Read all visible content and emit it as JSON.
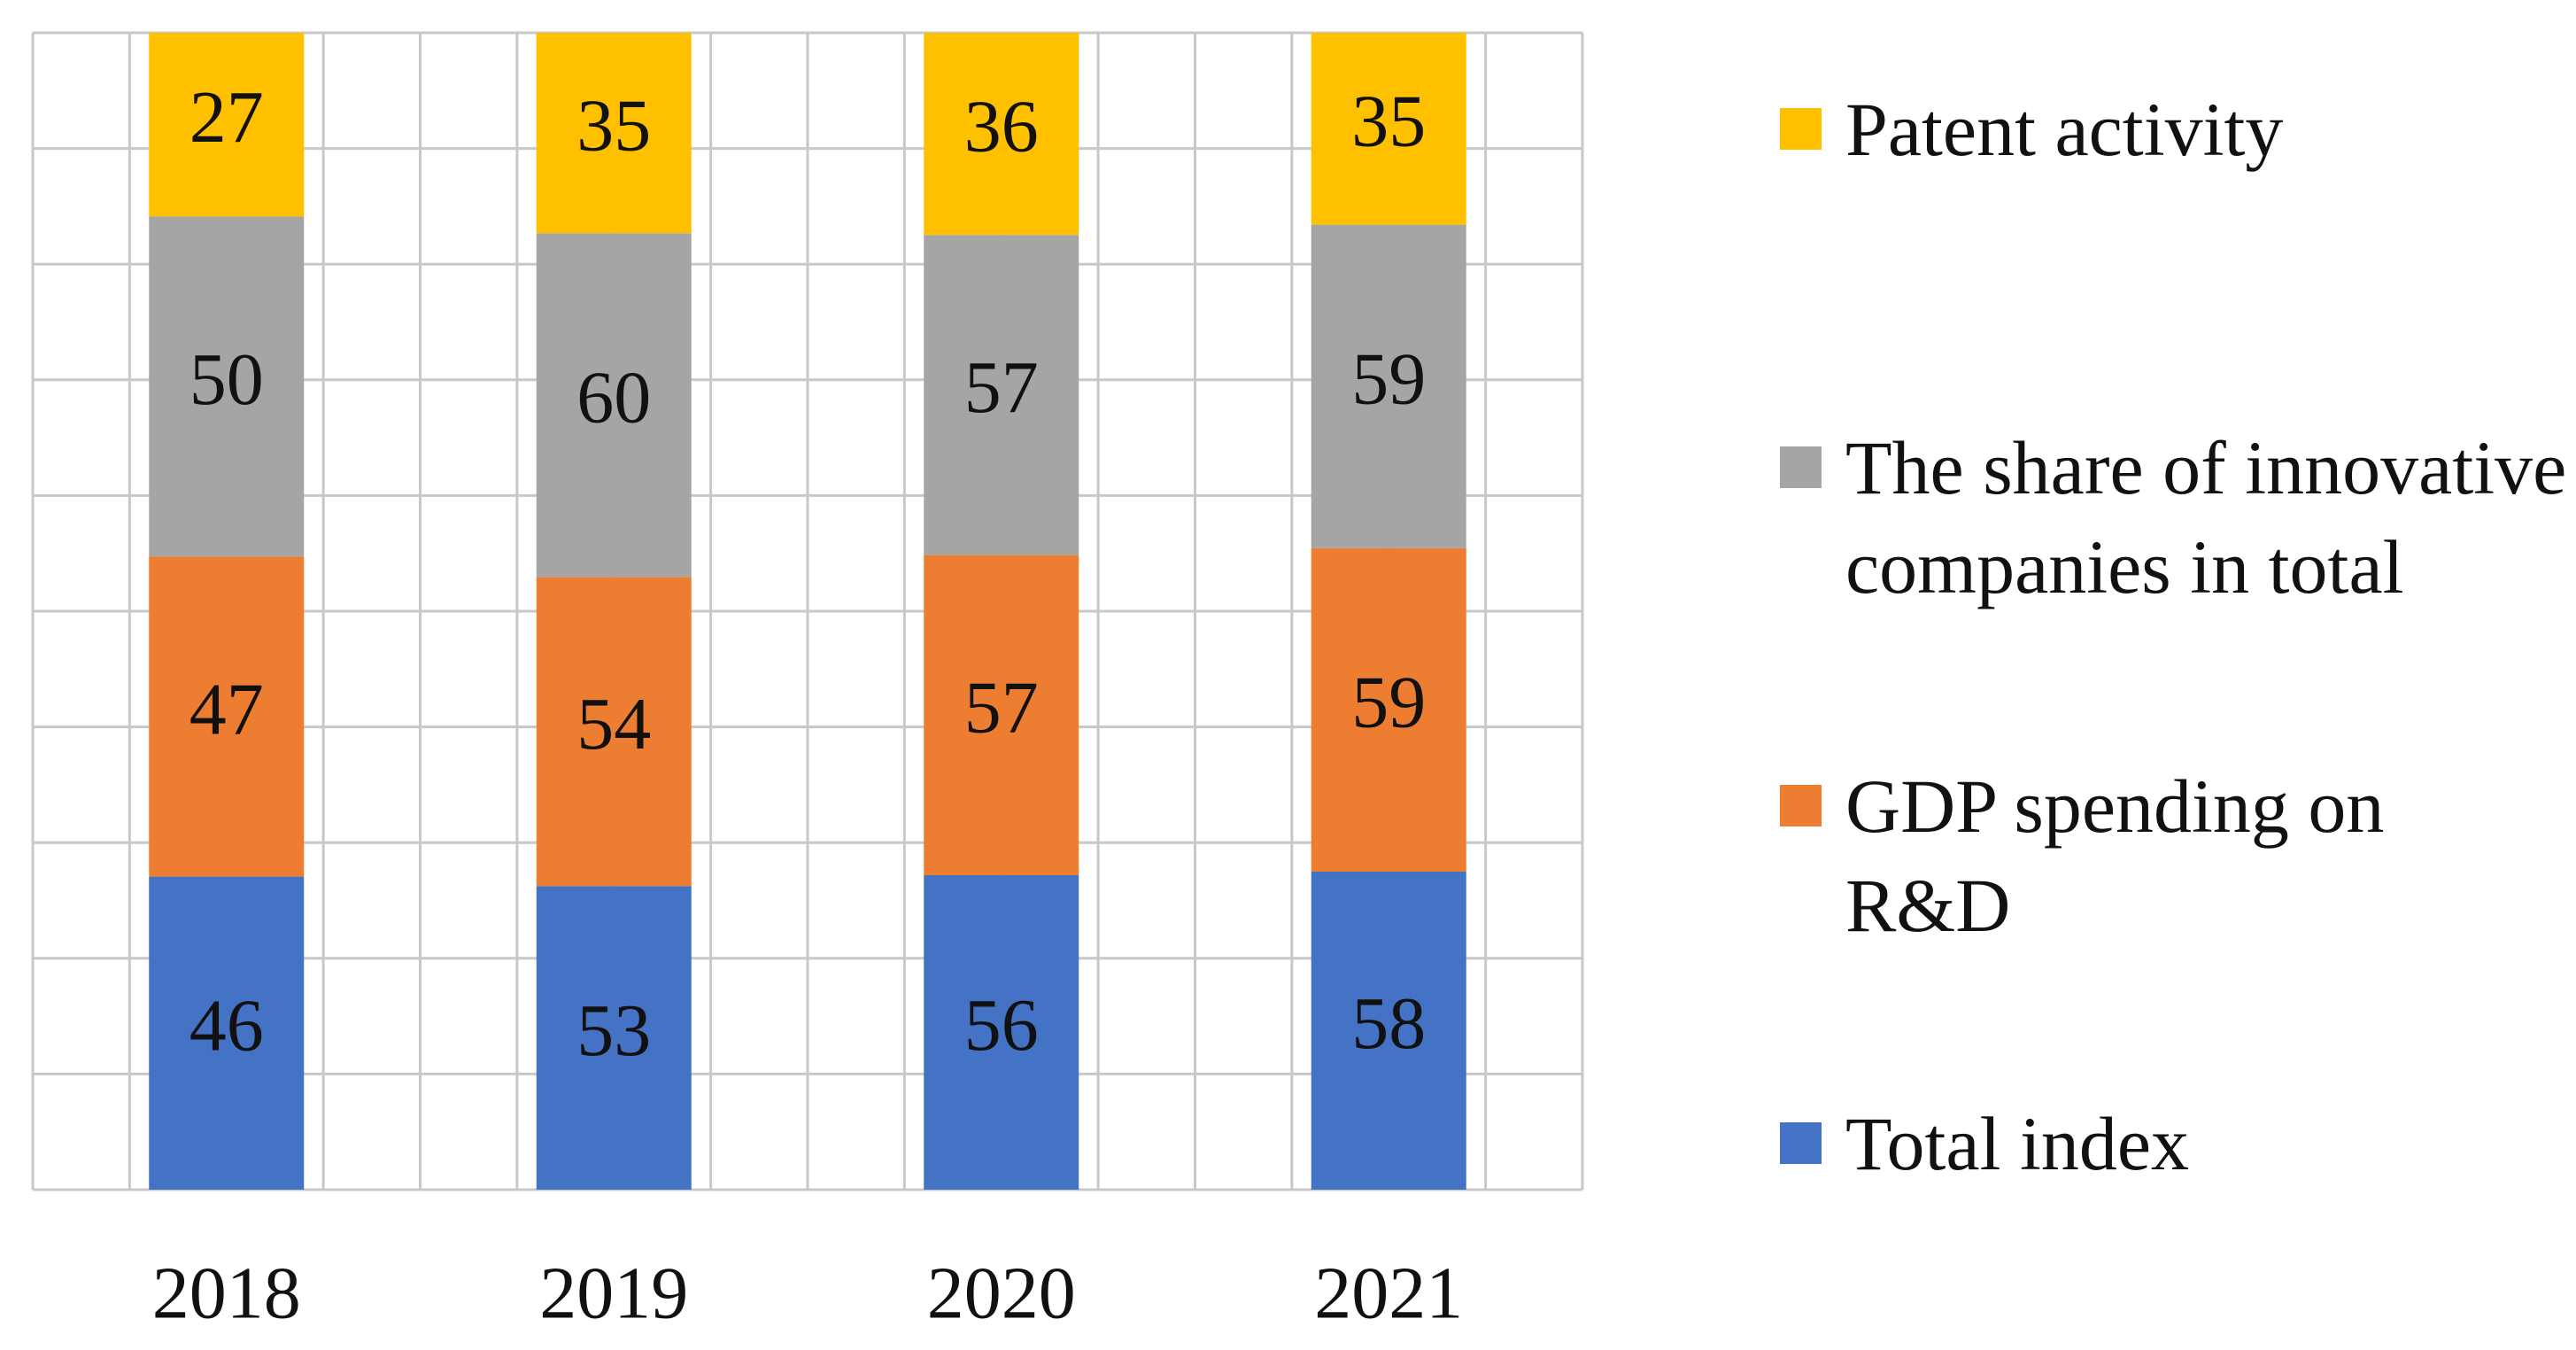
{
  "chart_data": {
    "type": "bar",
    "stacked": "percent",
    "grid": true,
    "categories": [
      "2018",
      "2019",
      "2020",
      "2021"
    ],
    "series": [
      {
        "name": "Total index",
        "color": "#4472c4",
        "values": [
          46,
          53,
          56,
          58
        ]
      },
      {
        "name": "GDP spending on R&D",
        "color": "#ed7d31",
        "values": [
          47,
          54,
          57,
          59
        ]
      },
      {
        "name": "The share of innovative companies in total",
        "color": "#a5a5a5",
        "values": [
          50,
          60,
          57,
          59
        ]
      },
      {
        "name": "Patent activity",
        "color": "#ffc000",
        "values": [
          27,
          35,
          36,
          35
        ]
      }
    ],
    "legend": "right"
  }
}
